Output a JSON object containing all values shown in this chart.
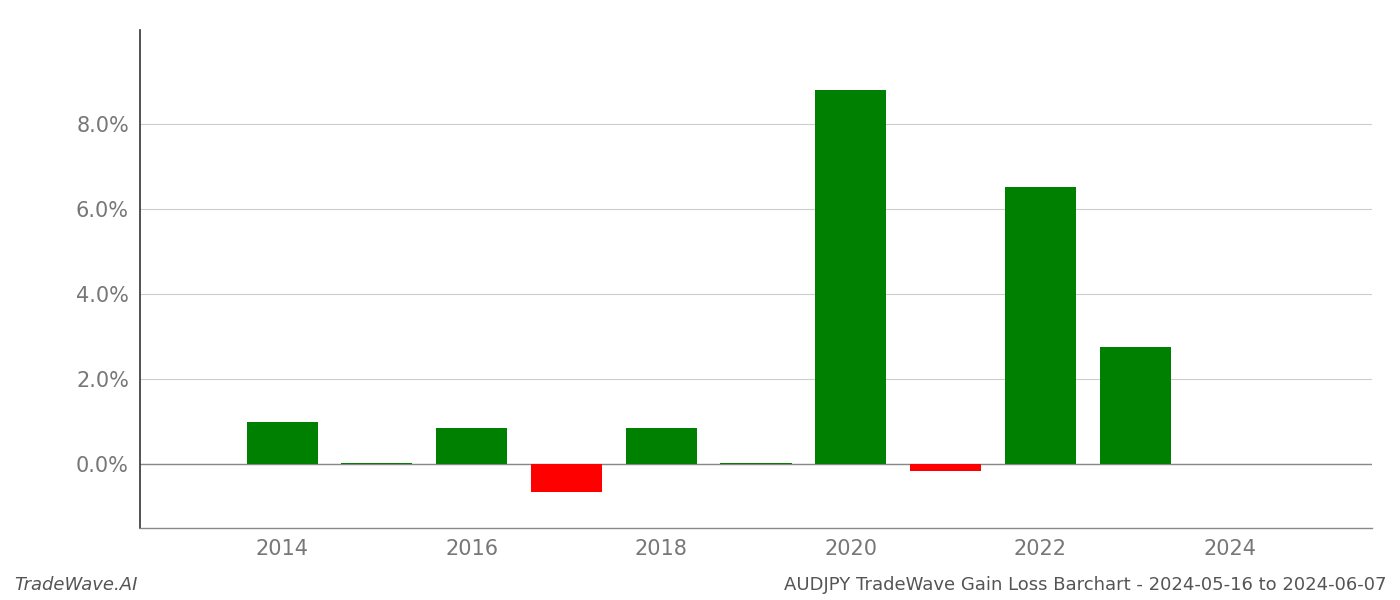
{
  "years": [
    2014,
    2015,
    2016,
    2017,
    2018,
    2019,
    2020,
    2021,
    2022,
    2023
  ],
  "values": [
    1.0,
    0.02,
    0.85,
    -0.65,
    0.85,
    0.02,
    8.8,
    -0.15,
    6.5,
    2.75
  ],
  "colors_positive": "#008000",
  "colors_negative": "#ff0000",
  "title": "AUDJPY TradeWave Gain Loss Barchart - 2024-05-16 to 2024-06-07",
  "watermark": "TradeWave.AI",
  "xlim": [
    2012.5,
    2025.5
  ],
  "ylim": [
    -1.5,
    10.2
  ],
  "ytick_values": [
    0.0,
    2.0,
    4.0,
    6.0,
    8.0
  ],
  "xtick_values": [
    2014,
    2016,
    2018,
    2020,
    2022,
    2024
  ],
  "background_color": "#ffffff",
  "grid_color": "#cccccc",
  "bar_width": 0.75,
  "title_fontsize": 13,
  "watermark_fontsize": 13,
  "tick_fontsize": 15
}
